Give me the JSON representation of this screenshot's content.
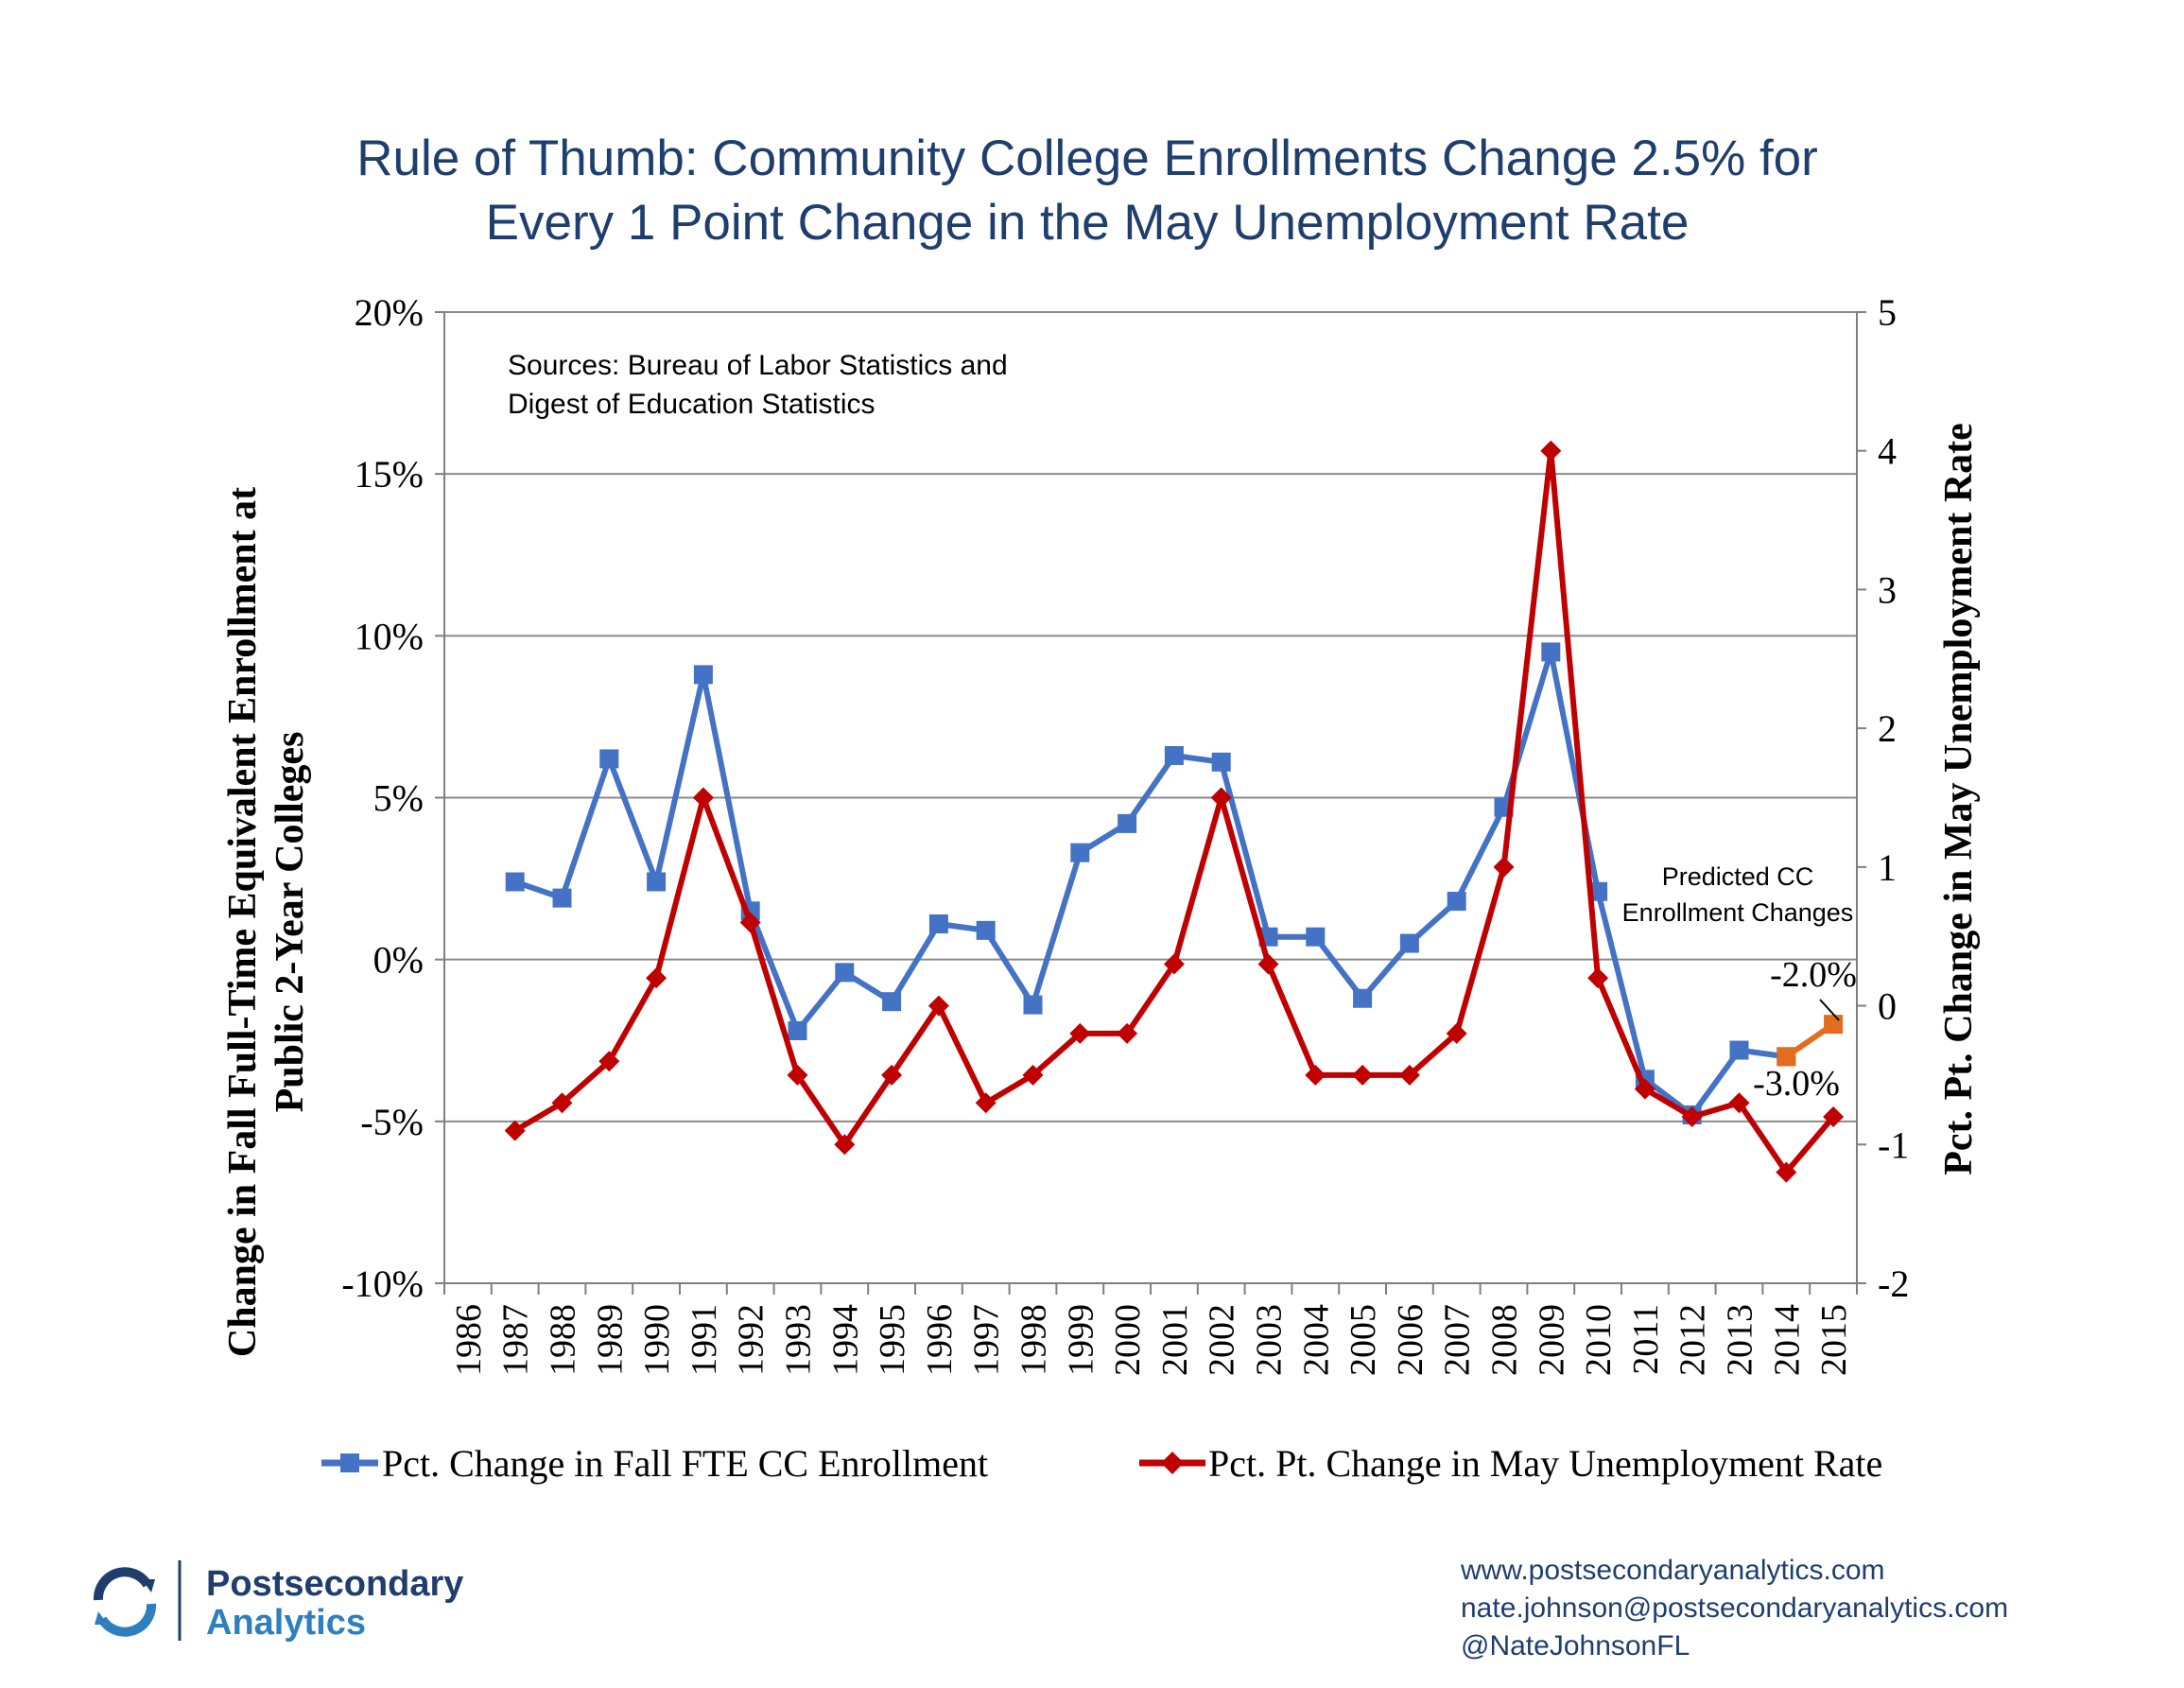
{
  "page": {
    "title_line1": "Rule of Thumb:  Community College Enrollments Change 2.5% for",
    "title_line2": "Every 1 Point Change in the May Unemployment Rate"
  },
  "chart_data": {
    "type": "line",
    "title": "Rule of Thumb:  Community College Enrollments Change 2.5% for Every 1 Point Change in the May Unemployment Rate",
    "categories": [
      "1986",
      "1987",
      "1988",
      "1989",
      "1990",
      "1991",
      "1992",
      "1993",
      "1994",
      "1995",
      "1996",
      "1997",
      "1998",
      "1999",
      "2000",
      "2001",
      "2002",
      "2003",
      "2004",
      "2005",
      "2006",
      "2007",
      "2008",
      "2009",
      "2010",
      "2011",
      "2012",
      "2013",
      "2014",
      "2015"
    ],
    "ylabel_left_line1": "Change in Fall Full-Time Equivalent Enrollment at",
    "ylabel_left_line2": "Public 2-Year Colleges",
    "ylabel_right": "Pct. Pt. Change in May Unemployment Rate",
    "ylim_left": [
      -10,
      20
    ],
    "ylim_right": [
      -2,
      5
    ],
    "yticks_left": [
      "20%",
      "15%",
      "10%",
      "5%",
      "0%",
      "-5%",
      "-10%"
    ],
    "yticks_right": [
      "5",
      "4",
      "3",
      "2",
      "1",
      "0",
      "-1",
      "-2"
    ],
    "grid": true,
    "legend_position": "bottom",
    "series": [
      {
        "name": "Pct. Change in Fall FTE CC Enrollment",
        "axis": "left",
        "color": "#4472c4",
        "marker": "square",
        "values": [
          null,
          2.4,
          1.9,
          6.2,
          2.4,
          8.8,
          1.5,
          -2.2,
          -0.4,
          -1.3,
          1.1,
          0.9,
          -1.4,
          3.3,
          4.2,
          6.3,
          6.1,
          0.7,
          0.7,
          -1.2,
          0.5,
          1.8,
          4.7,
          9.5,
          2.1,
          -3.7,
          -4.8,
          -2.8,
          -3.0,
          null
        ]
      },
      {
        "name": "Predicted CC Enrollment Changes",
        "axis": "left",
        "color": "#e36c1e",
        "marker": "square",
        "values": [
          null,
          null,
          null,
          null,
          null,
          null,
          null,
          null,
          null,
          null,
          null,
          null,
          null,
          null,
          null,
          null,
          null,
          null,
          null,
          null,
          null,
          null,
          null,
          null,
          null,
          null,
          null,
          null,
          -3.0,
          -2.0
        ]
      },
      {
        "name": "Pct. Pt. Change in May Unemployment Rate",
        "axis": "right",
        "color": "#c00000",
        "marker": "diamond",
        "values": [
          null,
          -0.9,
          -0.7,
          -0.4,
          0.2,
          1.5,
          0.6,
          -0.5,
          -1.0,
          -0.5,
          0.0,
          -0.7,
          -0.5,
          -0.2,
          -0.2,
          0.3,
          1.5,
          0.3,
          -0.5,
          -0.5,
          -0.5,
          -0.2,
          1.0,
          4.0,
          0.2,
          -0.6,
          -0.8,
          -0.7,
          -1.2,
          -0.8
        ]
      }
    ],
    "annotations": {
      "sources_line1": "Sources: Bureau of Labor Statistics and",
      "sources_line2": "Digest of Education Statistics",
      "predicted_line1": "Predicted CC",
      "predicted_line2": "Enrollment Changes",
      "label_2015": "-2.0%",
      "label_2014": "-3.0%"
    },
    "legend": [
      "Pct. Change in Fall FTE CC Enrollment",
      "Pct. Pt. Change in May Unemployment Rate"
    ]
  },
  "footer": {
    "logo_line1": "Postsecondary",
    "logo_line2": "Analytics",
    "website": "www.postsecondaryanalytics.com",
    "email": "nate.johnson@postsecondaryanalytics.com",
    "twitter": "@NateJohnsonFL"
  }
}
